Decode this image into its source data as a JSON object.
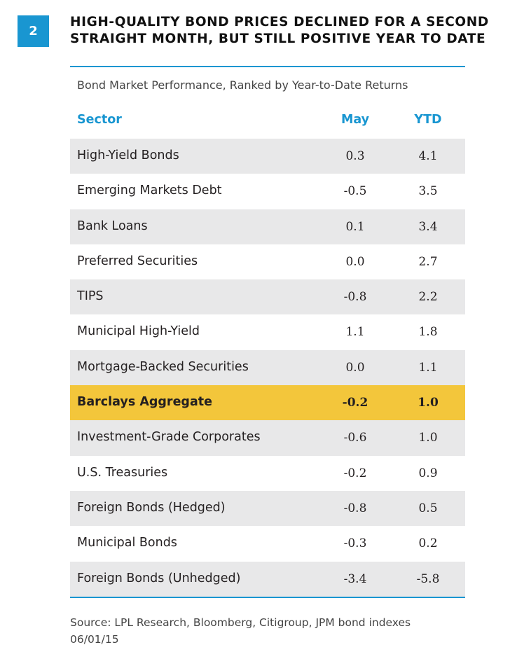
{
  "figure": {
    "number": "2",
    "title_line1": "HIGH-QUALITY BOND PRICES DECLINED FOR A SECOND",
    "title_line2": "STRAIGHT MONTH, BUT STILL POSITIVE YEAR TO DATE",
    "subtitle": "Bond Market Performance, Ranked by Year-to-Date Returns"
  },
  "colors": {
    "accent": "#1996d1",
    "highlight": "#f3c63b",
    "stripe": "#e8e8e9"
  },
  "table": {
    "headers": {
      "sector": "Sector",
      "may": "May",
      "ytd": "YTD"
    },
    "rows": [
      {
        "sector": "High-Yield Bonds",
        "may": "0.3",
        "ytd": "4.1"
      },
      {
        "sector": "Emerging Markets Debt",
        "may": "-0.5",
        "ytd": "3.5"
      },
      {
        "sector": "Bank Loans",
        "may": "0.1",
        "ytd": "3.4"
      },
      {
        "sector": "Preferred Securities",
        "may": "0.0",
        "ytd": "2.7"
      },
      {
        "sector": "TIPS",
        "may": "-0.8",
        "ytd": "2.2"
      },
      {
        "sector": "Municipal High-Yield",
        "may": "1.1",
        "ytd": "1.8"
      },
      {
        "sector": "Mortgage-Backed Securities",
        "may": "0.0",
        "ytd": "1.1"
      },
      {
        "sector": "Barclays Aggregate",
        "may": "-0.2",
        "ytd": "1.0"
      },
      {
        "sector": "Investment-Grade Corporates",
        "may": "-0.6",
        "ytd": "1.0"
      },
      {
        "sector": "U.S. Treasuries",
        "may": "-0.2",
        "ytd": "0.9"
      },
      {
        "sector": "Foreign Bonds (Hedged)",
        "may": "-0.8",
        "ytd": "0.5"
      },
      {
        "sector": "Municipal Bonds",
        "may": "-0.3",
        "ytd": "0.2"
      },
      {
        "sector": "Foreign Bonds (Unhedged)",
        "may": "-3.4",
        "ytd": "-5.8"
      }
    ]
  },
  "source": {
    "line1": "Source: LPL Research, Bloomberg, Citigroup, JPM bond indexes",
    "line2": "06/01/15"
  }
}
